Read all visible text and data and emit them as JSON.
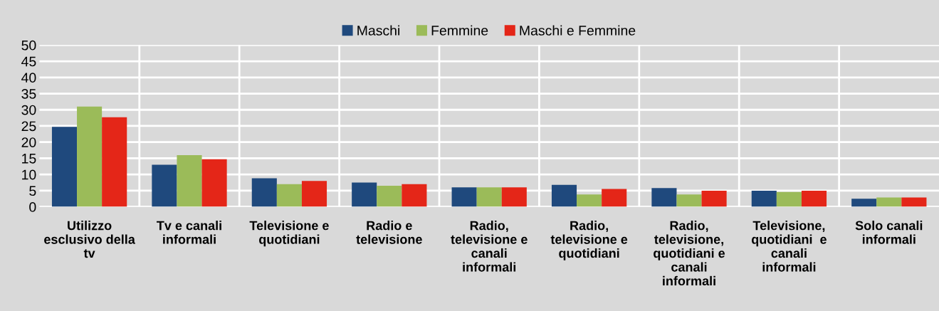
{
  "chart_data": {
    "type": "bar",
    "categories": [
      "Utilizzo\nesclusivo della\ntv",
      "Tv e canali\ninformali",
      "Televisione e\nquotidiani",
      "Radio e\ntelevisione",
      "Radio,\ntelevisione e\ncanali\ninformali",
      "Radio,\ntelevisione e\nquotidiani",
      "Radio,\ntelevisione,\nquotidiani e\ncanali\ninformali",
      "Televisione,\nquotidiani  e\ncanali\ninformali",
      "Solo canali\ninformali"
    ],
    "series": [
      {
        "name": "Maschi",
        "color": "#1f497d",
        "values": [
          24.7,
          13,
          8.8,
          7.5,
          6,
          6.8,
          5.8,
          5,
          2.5
        ]
      },
      {
        "name": "Femmine",
        "color": "#9bbb59",
        "values": [
          31,
          16,
          7,
          6.5,
          6,
          3.8,
          3.8,
          4.6,
          2.9
        ]
      },
      {
        "name": "Maschi e Femmine",
        "color": "#e42618",
        "values": [
          27.7,
          14.7,
          8,
          7,
          6,
          5.5,
          5,
          5,
          2.9
        ]
      }
    ],
    "ylim": [
      0,
      50
    ],
    "yticks": [
      0,
      5,
      10,
      15,
      20,
      25,
      30,
      35,
      40,
      45,
      50
    ],
    "grid": true,
    "legend": "top"
  }
}
